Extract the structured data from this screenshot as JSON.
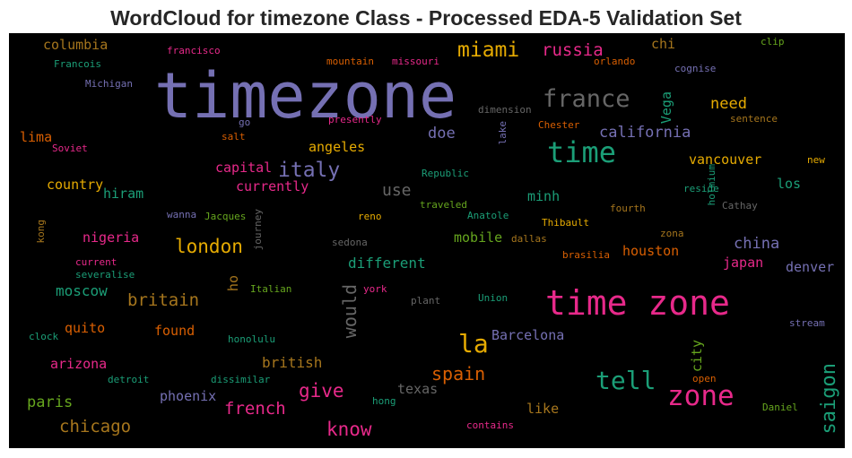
{
  "chart_data": {
    "type": "wordcloud",
    "title": "WordCloud for timezone Class - Processed EDA-5 Validation Set",
    "background": "#000000",
    "words": [
      {
        "text": "timezone",
        "color": "#7570b3"
      },
      {
        "text": "time zone",
        "color": "#e7298a"
      },
      {
        "text": "time",
        "color": "#1b9e77"
      },
      {
        "text": "zone",
        "color": "#e7298a"
      },
      {
        "text": "tell",
        "color": "#1b9e77"
      },
      {
        "text": "france",
        "color": "#666666"
      },
      {
        "text": "la",
        "color": "#e6ab02"
      },
      {
        "text": "miami",
        "color": "#e6ab02"
      },
      {
        "text": "london",
        "color": "#e6ab02"
      },
      {
        "text": "italy",
        "color": "#7570b3"
      },
      {
        "text": "russia",
        "color": "#e7298a"
      },
      {
        "text": "know",
        "color": "#e7298a"
      },
      {
        "text": "give",
        "color": "#e7298a"
      },
      {
        "text": "spain",
        "color": "#d95f02"
      },
      {
        "text": "saigon",
        "color": "#1b9e77"
      },
      {
        "text": "chicago",
        "color": "#a6761d"
      },
      {
        "text": "french",
        "color": "#e7298a"
      },
      {
        "text": "britain",
        "color": "#a6761d"
      },
      {
        "text": "would",
        "color": "#666666"
      },
      {
        "text": "california",
        "color": "#7570b3"
      },
      {
        "text": "doe",
        "color": "#7570b3"
      },
      {
        "text": "use",
        "color": "#666666"
      },
      {
        "text": "need",
        "color": "#e6ab02"
      },
      {
        "text": "china",
        "color": "#7570b3"
      },
      {
        "text": "different",
        "color": "#1b9e77"
      },
      {
        "text": "moscow",
        "color": "#1b9e77"
      },
      {
        "text": "british",
        "color": "#a6761d"
      },
      {
        "text": "paris",
        "color": "#66a61e"
      },
      {
        "text": "nigeria",
        "color": "#e7298a"
      },
      {
        "text": "columbia",
        "color": "#a6761d"
      },
      {
        "text": "angeles",
        "color": "#e6ab02"
      },
      {
        "text": "capital",
        "color": "#e7298a"
      },
      {
        "text": "currently",
        "color": "#e7298a"
      },
      {
        "text": "country",
        "color": "#e6ab02"
      },
      {
        "text": "hiram",
        "color": "#1b9e77"
      },
      {
        "text": "minh",
        "color": "#1b9e77"
      },
      {
        "text": "mobile",
        "color": "#66a61e"
      },
      {
        "text": "houston",
        "color": "#d95f02"
      },
      {
        "text": "japan",
        "color": "#e7298a"
      },
      {
        "text": "denver",
        "color": "#7570b3"
      },
      {
        "text": "vancouver",
        "color": "#e6ab02"
      },
      {
        "text": "los",
        "color": "#1b9e77"
      },
      {
        "text": "Vega",
        "color": "#1b9e77"
      },
      {
        "text": "chi",
        "color": "#a6761d"
      },
      {
        "text": "lima",
        "color": "#d95f02"
      },
      {
        "text": "quito",
        "color": "#d95f02"
      },
      {
        "text": "found",
        "color": "#d95f02"
      },
      {
        "text": "arizona",
        "color": "#e7298a"
      },
      {
        "text": "phoenix",
        "color": "#7570b3"
      },
      {
        "text": "texas",
        "color": "#666666"
      },
      {
        "text": "like",
        "color": "#a6761d"
      },
      {
        "text": "Barcelona",
        "color": "#7570b3"
      },
      {
        "text": "ho",
        "color": "#a6761d"
      },
      {
        "text": "city",
        "color": "#66a61e"
      },
      {
        "text": "Francois",
        "color": "#1b9e77"
      },
      {
        "text": "Michigan",
        "color": "#7570b3"
      },
      {
        "text": "francisco",
        "color": "#e7298a"
      },
      {
        "text": "mountain",
        "color": "#d95f02"
      },
      {
        "text": "missouri",
        "color": "#e7298a"
      },
      {
        "text": "orlando",
        "color": "#d95f02"
      },
      {
        "text": "clip",
        "color": "#66a61e"
      },
      {
        "text": "cognise",
        "color": "#7570b3"
      },
      {
        "text": "dimension",
        "color": "#666666"
      },
      {
        "text": "Chester",
        "color": "#d95f02"
      },
      {
        "text": "sentence",
        "color": "#a6761d"
      },
      {
        "text": "presently",
        "color": "#e7298a"
      },
      {
        "text": "go",
        "color": "#7570b3"
      },
      {
        "text": "salt",
        "color": "#d95f02"
      },
      {
        "text": "lake",
        "color": "#7570b3"
      },
      {
        "text": "Soviet",
        "color": "#e7298a"
      },
      {
        "text": "Republic",
        "color": "#1b9e77"
      },
      {
        "text": "new",
        "color": "#e6ab02"
      },
      {
        "text": "holmium",
        "color": "#1b9e77"
      },
      {
        "text": "reside",
        "color": "#1b9e77"
      },
      {
        "text": "Cathay",
        "color": "#666666"
      },
      {
        "text": "wanna",
        "color": "#7570b3"
      },
      {
        "text": "Jacques",
        "color": "#66a61e"
      },
      {
        "text": "journey",
        "color": "#666666"
      },
      {
        "text": "reno",
        "color": "#e6ab02"
      },
      {
        "text": "traveled",
        "color": "#66a61e"
      },
      {
        "text": "Anatole",
        "color": "#1b9e77"
      },
      {
        "text": "Thibault",
        "color": "#e6ab02"
      },
      {
        "text": "fourth",
        "color": "#a6761d"
      },
      {
        "text": "kong",
        "color": "#a6761d"
      },
      {
        "text": "sedona",
        "color": "#666666"
      },
      {
        "text": "dallas",
        "color": "#a6761d"
      },
      {
        "text": "zona",
        "color": "#a6761d"
      },
      {
        "text": "brasilia",
        "color": "#d95f02"
      },
      {
        "text": "current",
        "color": "#e7298a"
      },
      {
        "text": "severalise",
        "color": "#1b9e77"
      },
      {
        "text": "Italian",
        "color": "#66a61e"
      },
      {
        "text": "york",
        "color": "#e7298a"
      },
      {
        "text": "plant",
        "color": "#666666"
      },
      {
        "text": "Union",
        "color": "#1b9e77"
      },
      {
        "text": "stream",
        "color": "#7570b3"
      },
      {
        "text": "clock",
        "color": "#1b9e77"
      },
      {
        "text": "honolulu",
        "color": "#1b9e77"
      },
      {
        "text": "detroit",
        "color": "#1b9e77"
      },
      {
        "text": "dissimilar",
        "color": "#1b9e77"
      },
      {
        "text": "hong",
        "color": "#1b9e77"
      },
      {
        "text": "open",
        "color": "#d95f02"
      },
      {
        "text": "contains",
        "color": "#e7298a"
      },
      {
        "text": "Daniel",
        "color": "#66a61e"
      }
    ]
  }
}
